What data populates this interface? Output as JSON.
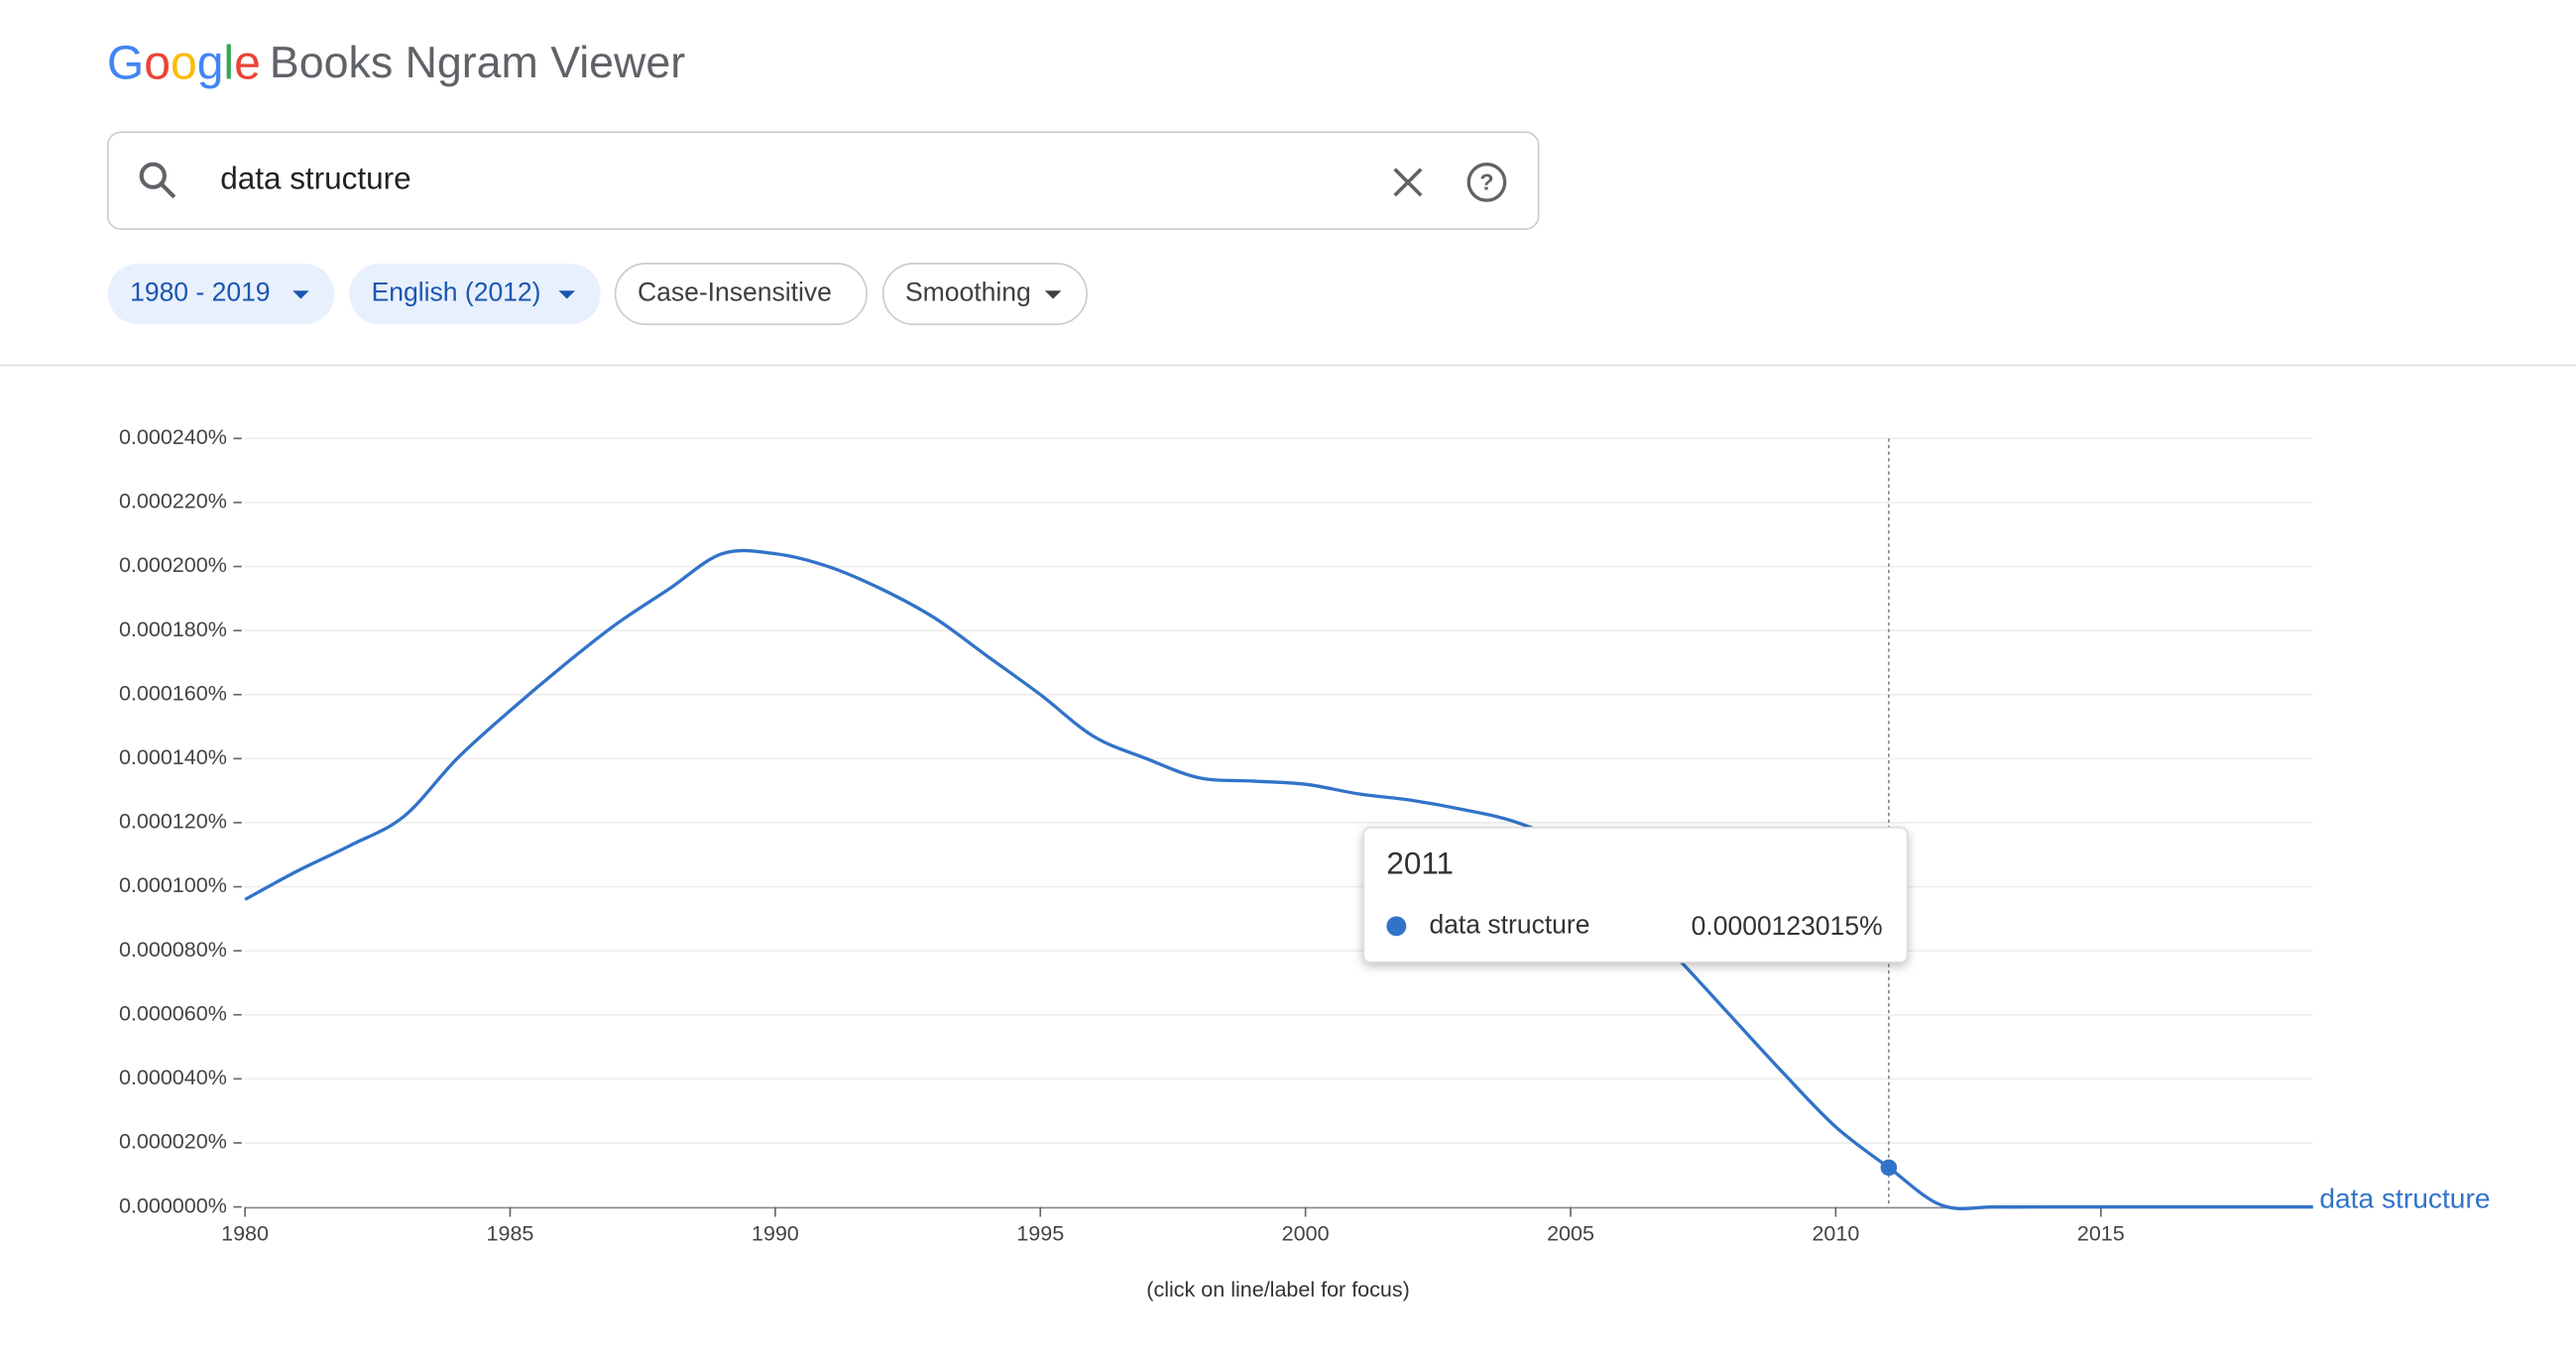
{
  "header": {
    "logo": "Google",
    "title": "Books Ngram Viewer"
  },
  "search": {
    "query": "data structure"
  },
  "chips": [
    "1980 - 2019",
    "English (2012)",
    "Case-Insensitive",
    "Smoothing"
  ],
  "chart_data": {
    "type": "line",
    "x": [
      1980,
      1981,
      1982,
      1983,
      1984,
      1985,
      1986,
      1987,
      1988,
      1989,
      1990,
      1991,
      1992,
      1993,
      1994,
      1995,
      1996,
      1997,
      1998,
      1999,
      2000,
      2001,
      2002,
      2003,
      2004,
      2005,
      2006,
      2007,
      2008,
      2009,
      2010,
      2011,
      2012,
      2013,
      2014,
      2015,
      2016,
      2017,
      2018,
      2019
    ],
    "series": [
      {
        "name": "data structure",
        "color": "#3173c9",
        "values": [
          9.6e-05,
          0.000105,
          0.000113,
          0.000122,
          0.00014,
          0.000155,
          0.000169,
          0.000182,
          0.000193,
          0.000204,
          0.000204,
          0.0002,
          0.000193,
          0.000184,
          0.000172,
          0.00016,
          0.000147,
          0.00014,
          0.000134,
          0.000133,
          0.000132,
          0.000129,
          0.000127,
          0.000124,
          0.00012,
          0.000112,
          9.5e-05,
          7.8e-05,
          6e-05,
          4.2e-05,
          2.5e-05,
          1.23015e-05,
          5e-07,
          0,
          0,
          0,
          0,
          0,
          0,
          0
        ]
      }
    ],
    "xlim": [
      1980,
      2019
    ],
    "xticks": [
      1980,
      1985,
      1990,
      1995,
      2000,
      2005,
      2010,
      2015
    ],
    "ylim": [
      0,
      0.00024
    ],
    "yticks": [
      {
        "value": 0,
        "label": "0.000000%"
      },
      {
        "value": 2e-05,
        "label": "0.000020%"
      },
      {
        "value": 4e-05,
        "label": "0.000040%"
      },
      {
        "value": 6e-05,
        "label": "0.000060%"
      },
      {
        "value": 8e-05,
        "label": "0.000080%"
      },
      {
        "value": 0.0001,
        "label": "0.000100%"
      },
      {
        "value": 0.00012,
        "label": "0.000120%"
      },
      {
        "value": 0.00014,
        "label": "0.000140%"
      },
      {
        "value": 0.00016,
        "label": "0.000160%"
      },
      {
        "value": 0.00018,
        "label": "0.000180%"
      },
      {
        "value": 0.0002,
        "label": "0.000200%"
      },
      {
        "value": 0.00022,
        "label": "0.000220%"
      },
      {
        "value": 0.00024,
        "label": "0.000240%"
      }
    ],
    "grid": true,
    "tooltip": {
      "x": 2011,
      "label": "0.0000123015%"
    },
    "note": "(click on line/label for focus)"
  }
}
